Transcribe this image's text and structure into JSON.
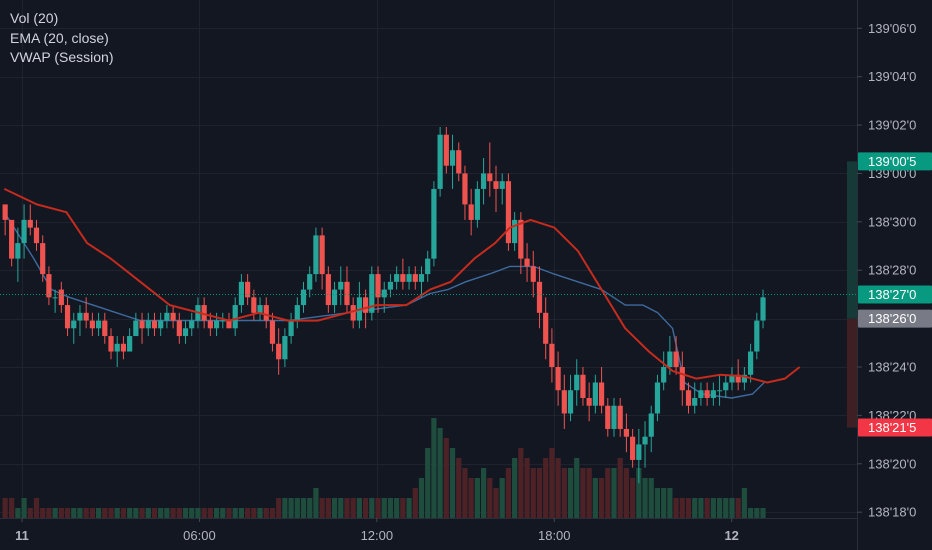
{
  "legend": [
    "Vol (20)",
    "EMA (20, close)",
    "VWAP (Session)"
  ],
  "chart_data": {
    "type": "candlestick",
    "price_ticks": [
      {
        "label": "139'06'0",
        "value": 139.1875
      },
      {
        "label": "139'04'0",
        "value": 139.125
      },
      {
        "label": "139'02'0",
        "value": 139.0625
      },
      {
        "label": "139'00'0",
        "value": 139.0
      },
      {
        "label": "138'30'0",
        "value": 138.9375
      },
      {
        "label": "138'28'0",
        "value": 138.875
      },
      {
        "label": "138'26'0",
        "value": 138.8125
      },
      {
        "label": "138'24'0",
        "value": 138.75
      },
      {
        "label": "138'22'0",
        "value": 138.6875
      },
      {
        "label": "138'20'0",
        "value": 138.625
      },
      {
        "label": "138'18'0",
        "value": 138.5625
      }
    ],
    "time_ticks": [
      {
        "label": "11",
        "bold": true,
        "hour": 0
      },
      {
        "label": "06:00",
        "bold": false,
        "hour": 6
      },
      {
        "label": "12:00",
        "bold": false,
        "hour": 12
      },
      {
        "label": "18:00",
        "bold": false,
        "hour": 18
      },
      {
        "label": "12",
        "bold": true,
        "hour": 24
      }
    ],
    "ylim": [
      138.555,
      139.224
    ],
    "price_badges": [
      {
        "label": "139'00'5",
        "value": 139.0156,
        "color": "#089981"
      },
      {
        "label": "138'27'0",
        "value": 138.8437,
        "color": "#089981"
      },
      {
        "label": "138'26'0",
        "value": 138.8125,
        "color": "#787b86"
      },
      {
        "label": "138'21'5",
        "value": 138.6719,
        "color": "#f23645"
      }
    ],
    "last_price": 138.8437,
    "position": {
      "entry": 138.8125,
      "target": 139.0156,
      "stop": 138.6719,
      "start_hour": 27.9,
      "end_hour": 30.0
    },
    "colors": {
      "up": "#26a69a",
      "down": "#ef5350",
      "ema": "#c62b1d",
      "vwap": "#3d6b9e",
      "vol_up": "#1e4d3d",
      "vol_down": "#4d2227",
      "target_zone": "#163a37",
      "stop_zone": "#3e2024"
    },
    "candles": [
      [
        -0.57,
        138.96,
        138.96,
        138.92,
        138.94
      ],
      [
        -0.35,
        138.94,
        138.94,
        138.88,
        138.89
      ],
      [
        -0.14,
        138.89,
        138.93,
        138.86,
        138.91
      ],
      [
        0.07,
        138.91,
        138.96,
        138.89,
        138.94
      ],
      [
        0.28,
        138.94,
        138.96,
        138.92,
        138.93
      ],
      [
        0.49,
        138.93,
        138.94,
        138.9,
        138.91
      ],
      [
        0.7,
        138.91,
        138.92,
        138.86,
        138.87
      ],
      [
        0.91,
        138.87,
        138.88,
        138.83,
        138.84
      ],
      [
        1.12,
        138.84,
        138.85,
        138.82,
        138.84
      ],
      [
        1.33,
        138.85,
        138.86,
        138.82,
        138.83
      ],
      [
        1.54,
        138.83,
        138.84,
        138.79,
        138.8
      ],
      [
        1.75,
        138.8,
        138.82,
        138.78,
        138.81
      ],
      [
        1.96,
        138.81,
        138.83,
        138.79,
        138.82
      ],
      [
        2.17,
        138.82,
        138.84,
        138.8,
        138.81
      ],
      [
        2.38,
        138.81,
        138.82,
        138.79,
        138.8
      ],
      [
        2.59,
        138.8,
        138.82,
        138.79,
        138.81
      ],
      [
        2.8,
        138.81,
        138.82,
        138.78,
        138.79
      ],
      [
        3.01,
        138.79,
        138.8,
        138.76,
        138.77
      ],
      [
        3.22,
        138.77,
        138.79,
        138.75,
        138.78
      ],
      [
        3.43,
        138.78,
        138.79,
        138.76,
        138.77
      ],
      [
        3.64,
        138.77,
        138.8,
        138.77,
        138.79
      ],
      [
        3.85,
        138.79,
        138.82,
        138.79,
        138.81
      ],
      [
        4.06,
        138.81,
        138.82,
        138.78,
        138.8
      ],
      [
        4.27,
        138.8,
        138.82,
        138.79,
        138.81
      ],
      [
        4.48,
        138.81,
        138.82,
        138.79,
        138.8
      ],
      [
        4.69,
        138.8,
        138.82,
        138.79,
        138.81
      ],
      [
        4.9,
        138.81,
        138.83,
        138.8,
        138.82
      ],
      [
        5.11,
        138.82,
        138.83,
        138.8,
        138.81
      ],
      [
        5.32,
        138.81,
        138.82,
        138.78,
        138.79
      ],
      [
        5.53,
        138.79,
        138.81,
        138.78,
        138.8
      ],
      [
        5.74,
        138.8,
        138.82,
        138.79,
        138.81
      ],
      [
        5.95,
        138.81,
        138.84,
        138.8,
        138.83
      ],
      [
        6.16,
        138.83,
        138.84,
        138.8,
        138.81
      ],
      [
        6.37,
        138.81,
        138.82,
        138.79,
        138.8
      ],
      [
        6.58,
        138.8,
        138.82,
        138.79,
        138.81
      ],
      [
        6.79,
        138.81,
        138.82,
        138.8,
        138.81
      ],
      [
        7.0,
        138.81,
        138.82,
        138.8,
        138.8
      ],
      [
        7.21,
        138.8,
        138.84,
        138.79,
        138.83
      ],
      [
        7.42,
        138.83,
        138.87,
        138.82,
        138.86
      ],
      [
        7.63,
        138.86,
        138.87,
        138.83,
        138.84
      ],
      [
        7.84,
        138.84,
        138.85,
        138.81,
        138.82
      ],
      [
        8.05,
        138.82,
        138.84,
        138.81,
        138.83
      ],
      [
        8.26,
        138.83,
        138.84,
        138.8,
        138.81
      ],
      [
        8.47,
        138.81,
        138.82,
        138.77,
        138.78
      ],
      [
        8.68,
        138.78,
        138.8,
        138.74,
        138.76
      ],
      [
        8.89,
        138.76,
        138.8,
        138.75,
        138.79
      ],
      [
        9.1,
        138.79,
        138.82,
        138.78,
        138.81
      ],
      [
        9.31,
        138.81,
        138.84,
        138.8,
        138.83
      ],
      [
        9.52,
        138.83,
        138.86,
        138.82,
        138.85
      ],
      [
        9.73,
        138.85,
        138.88,
        138.84,
        138.87
      ],
      [
        9.94,
        138.87,
        138.93,
        138.86,
        138.92
      ],
      [
        10.15,
        138.92,
        138.93,
        138.85,
        138.87
      ],
      [
        10.36,
        138.87,
        138.88,
        138.82,
        138.83
      ],
      [
        10.57,
        138.83,
        138.86,
        138.82,
        138.85
      ],
      [
        10.78,
        138.85,
        138.88,
        138.83,
        138.86
      ],
      [
        10.99,
        138.86,
        138.88,
        138.82,
        138.83
      ],
      [
        11.2,
        138.83,
        138.84,
        138.8,
        138.81
      ],
      [
        11.41,
        138.81,
        138.86,
        138.8,
        138.84
      ],
      [
        11.62,
        138.84,
        138.85,
        138.8,
        138.82
      ],
      [
        11.83,
        138.82,
        138.88,
        138.81,
        138.87
      ],
      [
        12.04,
        138.87,
        138.88,
        138.82,
        138.84
      ],
      [
        12.25,
        138.84,
        138.86,
        138.82,
        138.85
      ],
      [
        12.46,
        138.85,
        138.87,
        138.84,
        138.86
      ],
      [
        12.67,
        138.86,
        138.88,
        138.85,
        138.87
      ],
      [
        12.88,
        138.87,
        138.89,
        138.85,
        138.86
      ],
      [
        13.09,
        138.86,
        138.88,
        138.85,
        138.87
      ],
      [
        13.3,
        138.87,
        138.88,
        138.85,
        138.86
      ],
      [
        13.51,
        138.86,
        138.88,
        138.84,
        138.87
      ],
      [
        13.72,
        138.87,
        138.9,
        138.86,
        138.89
      ],
      [
        13.93,
        138.89,
        138.99,
        138.88,
        138.98
      ],
      [
        14.14,
        138.98,
        139.06,
        138.97,
        139.05
      ],
      [
        14.35,
        139.05,
        139.06,
        139.0,
        139.01
      ],
      [
        14.56,
        139.01,
        139.05,
        138.98,
        139.03
      ],
      [
        14.77,
        139.03,
        139.04,
        138.99,
        139.0
      ],
      [
        14.98,
        139.0,
        139.01,
        138.94,
        138.96
      ],
      [
        15.19,
        138.96,
        138.98,
        138.92,
        138.94
      ],
      [
        15.4,
        138.94,
        138.99,
        138.93,
        138.98
      ],
      [
        15.61,
        138.98,
        139.02,
        138.96,
        139.0
      ],
      [
        15.82,
        139.0,
        139.04,
        138.97,
        138.99
      ],
      [
        16.03,
        138.99,
        139.01,
        138.95,
        138.98
      ],
      [
        16.24,
        138.98,
        139.0,
        138.96,
        138.99
      ],
      [
        16.45,
        138.99,
        139.0,
        138.9,
        138.91
      ],
      [
        16.66,
        138.91,
        138.95,
        138.9,
        138.94
      ],
      [
        16.87,
        138.94,
        138.95,
        138.87,
        138.89
      ],
      [
        17.08,
        138.89,
        138.91,
        138.86,
        138.88
      ],
      [
        17.29,
        138.88,
        138.9,
        138.84,
        138.86
      ],
      [
        17.5,
        138.86,
        138.88,
        138.8,
        138.82
      ],
      [
        17.71,
        138.82,
        138.84,
        138.76,
        138.78
      ],
      [
        17.92,
        138.78,
        138.8,
        138.73,
        138.75
      ],
      [
        18.13,
        138.75,
        138.77,
        138.7,
        138.72
      ],
      [
        18.34,
        138.72,
        138.74,
        138.67,
        138.69
      ],
      [
        18.55,
        138.69,
        138.74,
        138.68,
        138.72
      ],
      [
        18.76,
        138.72,
        138.76,
        138.7,
        138.74
      ],
      [
        18.97,
        138.74,
        138.75,
        138.7,
        138.71
      ],
      [
        19.18,
        138.71,
        138.73,
        138.68,
        138.7
      ],
      [
        19.39,
        138.7,
        138.74,
        138.69,
        138.73
      ],
      [
        19.6,
        138.73,
        138.75,
        138.69,
        138.7
      ],
      [
        19.81,
        138.7,
        138.71,
        138.66,
        138.67
      ],
      [
        20.02,
        138.67,
        138.71,
        138.66,
        138.7
      ],
      [
        20.23,
        138.7,
        138.71,
        138.66,
        138.67
      ],
      [
        20.44,
        138.67,
        138.69,
        138.64,
        138.66
      ],
      [
        20.65,
        138.66,
        138.67,
        138.62,
        138.63
      ],
      [
        20.86,
        138.63,
        138.67,
        138.6,
        138.65
      ],
      [
        21.07,
        138.65,
        138.68,
        138.62,
        138.66
      ],
      [
        21.28,
        138.66,
        138.7,
        138.64,
        138.69
      ],
      [
        21.49,
        138.69,
        138.74,
        138.68,
        138.73
      ],
      [
        21.7,
        138.73,
        138.77,
        138.72,
        138.75
      ],
      [
        21.91,
        138.75,
        138.79,
        138.74,
        138.77
      ],
      [
        22.12,
        138.77,
        138.79,
        138.74,
        138.75
      ],
      [
        22.33,
        138.75,
        138.77,
        138.7,
        138.72
      ],
      [
        22.54,
        138.72,
        138.73,
        138.69,
        138.7
      ],
      [
        22.75,
        138.7,
        138.73,
        138.69,
        138.71
      ],
      [
        22.96,
        138.71,
        138.73,
        138.7,
        138.72
      ],
      [
        23.17,
        138.72,
        138.73,
        138.7,
        138.71
      ],
      [
        23.38,
        138.71,
        138.73,
        138.7,
        138.72
      ],
      [
        23.59,
        138.72,
        138.74,
        138.7,
        138.72
      ],
      [
        23.8,
        138.72,
        138.74,
        138.71,
        138.73
      ],
      [
        24.01,
        138.73,
        138.75,
        138.72,
        138.74
      ],
      [
        24.22,
        138.74,
        138.76,
        138.72,
        138.73
      ],
      [
        24.43,
        138.73,
        138.75,
        138.72,
        138.74
      ],
      [
        24.64,
        138.74,
        138.78,
        138.73,
        138.77
      ],
      [
        24.85,
        138.77,
        138.82,
        138.76,
        138.81
      ],
      [
        25.06,
        138.81,
        138.85,
        138.8,
        138.84
      ]
    ],
    "volume_max": 10,
    "volumes": [
      2,
      2,
      1,
      2,
      1,
      2,
      1,
      1,
      1,
      1,
      1,
      1,
      1,
      1,
      1,
      1,
      1,
      1,
      1,
      1,
      1,
      1,
      1,
      1,
      1,
      1,
      1,
      1,
      1,
      1,
      1,
      1,
      1,
      1,
      1,
      1,
      1,
      1,
      1,
      1,
      1,
      1,
      1,
      1,
      2,
      2,
      2,
      2,
      2,
      2,
      3,
      2,
      2,
      2,
      2,
      2,
      2,
      2,
      2,
      2,
      2,
      2,
      2,
      2,
      2,
      2,
      3,
      4,
      7,
      10,
      9,
      8,
      7,
      6,
      5,
      4,
      4,
      5,
      4,
      3,
      4,
      5,
      6,
      7,
      6,
      5,
      5,
      6,
      7,
      6,
      5,
      5,
      6,
      5,
      5,
      4,
      4,
      5,
      5,
      6,
      5,
      4,
      5,
      4,
      4,
      3,
      3,
      3,
      2,
      2,
      2,
      2,
      2,
      2,
      2,
      2,
      2,
      2,
      2,
      3
    ],
    "ema": [
      [
        -0.6,
        138.98
      ],
      [
        0.5,
        138.96
      ],
      [
        1.5,
        138.95
      ],
      [
        2.2,
        138.91
      ],
      [
        3.0,
        138.89
      ],
      [
        4.0,
        138.86
      ],
      [
        5.0,
        138.83
      ],
      [
        6.0,
        138.82
      ],
      [
        7.0,
        138.81
      ],
      [
        8.0,
        138.82
      ],
      [
        9.0,
        138.81
      ],
      [
        10.0,
        138.81
      ],
      [
        11.0,
        138.82
      ],
      [
        12.0,
        138.83
      ],
      [
        13.0,
        138.83
      ],
      [
        13.8,
        138.85
      ],
      [
        14.5,
        138.86
      ],
      [
        15.3,
        138.89
      ],
      [
        16.0,
        138.91
      ],
      [
        16.5,
        138.93
      ],
      [
        17.2,
        138.94
      ],
      [
        18.0,
        138.93
      ],
      [
        18.8,
        138.9
      ],
      [
        19.6,
        138.85
      ],
      [
        20.4,
        138.8
      ],
      [
        21.2,
        138.77
      ],
      [
        22.0,
        138.745
      ],
      [
        22.8,
        138.735
      ],
      [
        23.6,
        138.74
      ],
      [
        24.4,
        138.738
      ],
      [
        25.2,
        138.73
      ],
      [
        25.8,
        138.735
      ],
      [
        26.3,
        138.75
      ]
    ],
    "vwap": [
      [
        -0.6,
        138.95
      ],
      [
        0.4,
        138.89
      ],
      [
        1.0,
        138.85
      ],
      [
        1.6,
        138.84
      ],
      [
        2.4,
        138.83
      ],
      [
        3.2,
        138.82
      ],
      [
        4.0,
        138.81
      ],
      [
        5.0,
        138.81
      ],
      [
        6.0,
        138.81
      ],
      [
        7.0,
        138.81
      ],
      [
        8.0,
        138.81
      ],
      [
        9.0,
        138.81
      ],
      [
        10.0,
        138.815
      ],
      [
        11.0,
        138.82
      ],
      [
        12.0,
        138.825
      ],
      [
        13.0,
        138.83
      ],
      [
        13.8,
        138.845
      ],
      [
        14.4,
        138.85
      ],
      [
        15.0,
        138.86
      ],
      [
        15.8,
        138.87
      ],
      [
        16.5,
        138.88
      ],
      [
        17.3,
        138.88
      ],
      [
        18.0,
        138.87
      ],
      [
        18.8,
        138.86
      ],
      [
        19.6,
        138.85
      ],
      [
        20.4,
        138.83
      ],
      [
        21.0,
        138.83
      ],
      [
        21.5,
        138.82
      ],
      [
        22.0,
        138.8
      ],
      [
        22.4,
        138.73
      ],
      [
        23.0,
        138.715
      ],
      [
        24.0,
        138.71
      ],
      [
        24.7,
        138.715
      ],
      [
        25.1,
        138.73
      ]
    ]
  }
}
